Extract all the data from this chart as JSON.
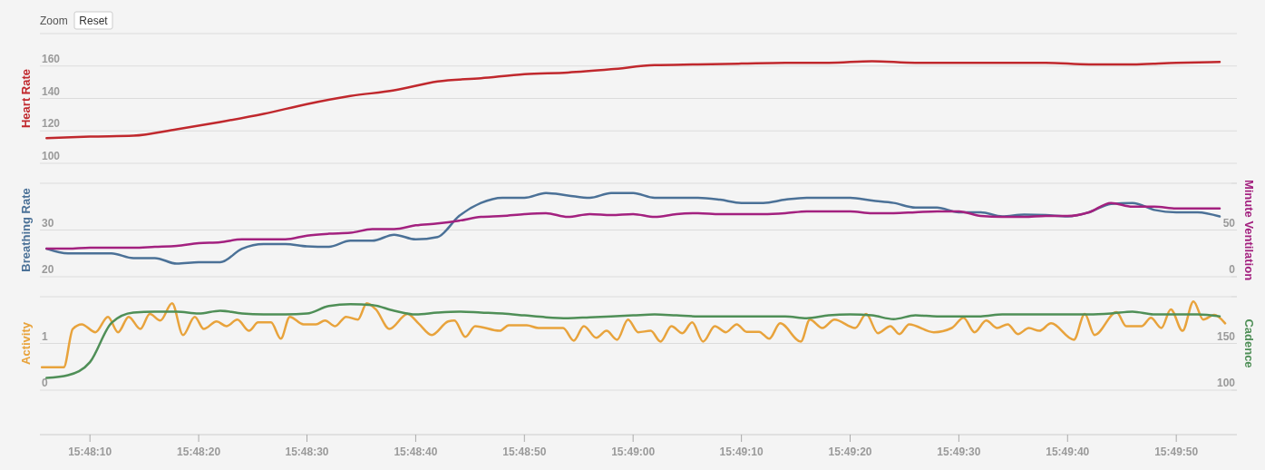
{
  "chart_data": [
    {
      "type": "line",
      "ylabel": "Heart Rate",
      "annotations": [
        "Zoom",
        "Reset"
      ],
      "xlim": [
        15.8015,
        15.83211
      ],
      "ylim": [
        100,
        180
      ],
      "yticks": [
        100,
        120,
        140,
        160,
        {
          "value": 180,
          "label": null
        }
      ],
      "grid": "y",
      "tick_labels": "y",
      "marker": "none",
      "series": [
        {
          "color": "#c0282d",
          "x": [
            15.80167,
            15.80278,
            15.80389,
            15.805,
            15.80611,
            15.80722,
            15.80833,
            15.80944,
            15.81056,
            15.81167,
            15.81278,
            15.81389,
            15.815,
            15.81611,
            15.81722,
            15.81833,
            15.81944,
            15.82056,
            15.82167,
            15.82278,
            15.82389,
            15.825,
            15.82611,
            15.82722,
            15.82833,
            15.82944,
            15.83056,
            15.83167
          ],
          "values": [
            115.5,
            116.5,
            117,
            121,
            125.5,
            130.5,
            136.5,
            141.5,
            145,
            150.5,
            152.5,
            155,
            156,
            158,
            160.5,
            161,
            161.5,
            162,
            162,
            163,
            162,
            162,
            162,
            162,
            161,
            161,
            162,
            162.5
          ]
        }
      ]
    },
    {
      "type": "line",
      "ylabel": "Breathing Rate",
      "y2label": "Minute Ventilation",
      "xlim": [
        15.8015,
        15.83211
      ],
      "ylim": [
        20,
        40
      ],
      "yticks": [
        20,
        30,
        {
          "value": 40,
          "label": null
        }
      ],
      "y2lim": [
        0,
        100
      ],
      "y2ticks": [
        0,
        50,
        {
          "value": 100,
          "label": null
        }
      ],
      "grid": "y",
      "tick_labels": "y",
      "marker": "none",
      "series": [
        {
          "color": "#4b7197",
          "x": [
            15.80167,
            15.80222,
            15.80278,
            15.80333,
            15.80389,
            15.80444,
            15.805,
            15.80556,
            15.80611,
            15.80667,
            15.80722,
            15.80778,
            15.80833,
            15.80889,
            15.80944,
            15.81,
            15.81056,
            15.81111,
            15.81167,
            15.81222,
            15.81278,
            15.81333,
            15.81389,
            15.81444,
            15.815,
            15.81556,
            15.81611,
            15.81667,
            15.81722,
            15.81778,
            15.81833,
            15.81889,
            15.81944,
            15.82,
            15.82056,
            15.82111,
            15.82167,
            15.82222,
            15.82278,
            15.82333,
            15.82389,
            15.82444,
            15.825,
            15.82556,
            15.82611,
            15.82667,
            15.82722,
            15.82778,
            15.82833,
            15.82889,
            15.82944,
            15.83,
            15.83056,
            15.83111,
            15.83167
          ],
          "values": [
            26,
            25,
            25,
            25,
            24,
            24,
            22.8,
            23.1,
            23.1,
            26,
            27,
            27,
            26.5,
            26.4,
            27.7,
            27.7,
            29,
            28,
            28.5,
            33,
            35.8,
            36.9,
            36.9,
            37.9,
            37.4,
            36.9,
            37.9,
            37.9,
            36.9,
            36.9,
            36.9,
            36.5,
            35.8,
            35.8,
            36.5,
            36.9,
            36.9,
            36.9,
            36.3,
            35.8,
            34.8,
            34.8,
            33.8,
            33.8,
            32.9,
            33.3,
            33.2,
            32.9,
            33.8,
            35.6,
            35.8,
            34.3,
            33.8,
            33.8,
            32.9
          ]
        },
        {
          "color": "#a3217f",
          "axis": "y2",
          "x": [
            15.80167,
            15.80222,
            15.80278,
            15.80333,
            15.80389,
            15.80444,
            15.805,
            15.80556,
            15.80611,
            15.80667,
            15.80722,
            15.80778,
            15.80833,
            15.80889,
            15.80944,
            15.81,
            15.81056,
            15.81111,
            15.81167,
            15.81222,
            15.81278,
            15.81333,
            15.81389,
            15.81444,
            15.815,
            15.81556,
            15.81611,
            15.81667,
            15.81722,
            15.81778,
            15.81833,
            15.81889,
            15.81944,
            15.82,
            15.82056,
            15.82111,
            15.82167,
            15.82222,
            15.82278,
            15.82333,
            15.82389,
            15.82444,
            15.825,
            15.82556,
            15.82611,
            15.82667,
            15.82722,
            15.82778,
            15.82833,
            15.82889,
            15.82944,
            15.83,
            15.83056,
            15.83111,
            15.83167
          ],
          "values": [
            30,
            30,
            31,
            31,
            31,
            32,
            33,
            36,
            37,
            40,
            40,
            40,
            44,
            46,
            47,
            51,
            51,
            55,
            57,
            60,
            64,
            65,
            67,
            68,
            64,
            67,
            66,
            67,
            64,
            67,
            68,
            67,
            67,
            67,
            68,
            70,
            70,
            70,
            68,
            68,
            69,
            70,
            70,
            65,
            64,
            64,
            65,
            65,
            69,
            79,
            75,
            75,
            73,
            73,
            73
          ]
        }
      ]
    },
    {
      "type": "line",
      "ylabel": "Activity",
      "y2label": "Cadence",
      "xlim": [
        15.8015,
        15.83211
      ],
      "xticks": [
        {
          "value": 15.80278,
          "label": "15:48:10"
        },
        {
          "value": 15.80556,
          "label": "15:48:20"
        },
        {
          "value": 15.80833,
          "label": "15:48:30"
        },
        {
          "value": 15.81111,
          "label": "15:48:40"
        },
        {
          "value": 15.81389,
          "label": "15:48:50"
        },
        {
          "value": 15.81667,
          "label": "15:49:00"
        },
        {
          "value": 15.81944,
          "label": "15:49:10"
        },
        {
          "value": 15.82222,
          "label": "15:49:20"
        },
        {
          "value": 15.825,
          "label": "15:49:30"
        },
        {
          "value": 15.82778,
          "label": "15:49:40"
        },
        {
          "value": 15.83056,
          "label": "15:49:50"
        }
      ],
      "ylim": [
        0,
        2
      ],
      "yticks": [
        0,
        1,
        {
          "value": 2,
          "label": null
        }
      ],
      "y2lim": [
        100,
        200
      ],
      "y2ticks": [
        100,
        150,
        {
          "value": 200,
          "label": null
        }
      ],
      "grid": "y",
      "marker": "none",
      "series": [
        {
          "color": "#e8a33c",
          "x": [
            15.80155,
            15.80211,
            15.80234,
            15.80257,
            15.80292,
            15.80324,
            15.8035,
            15.80377,
            15.80407,
            15.80431,
            15.80458,
            15.80488,
            15.80516,
            15.80546,
            15.80569,
            15.80602,
            15.80627,
            15.80655,
            15.80685,
            15.80708,
            15.80741,
            15.80766,
            15.80789,
            15.80824,
            15.80856,
            15.80879,
            15.80905,
            15.80933,
            15.80963,
            15.80986,
            15.81009,
            15.81044,
            15.8109,
            15.81118,
            15.81152,
            15.81194,
            15.8121,
            15.81238,
            15.81263,
            15.81326,
            15.81349,
            15.81395,
            15.81425,
            15.81488,
            15.81515,
            15.81541,
            15.81573,
            15.81599,
            15.81626,
            15.81654,
            15.8168,
            15.81712,
            15.81737,
            15.81765,
            15.81793,
            15.81818,
            15.81846,
            15.81876,
            15.81904,
            15.81932,
            15.81957,
            15.81989,
            15.82015,
            15.82043,
            15.82096,
            15.82119,
            15.82151,
            15.82182,
            15.82235,
            15.82263,
            15.82293,
            15.82325,
            15.82348,
            15.82373,
            15.82436,
            15.82482,
            15.82512,
            15.8254,
            15.8257,
            15.82598,
            15.82625,
            15.82651,
            15.82679,
            15.82706,
            15.82736,
            15.82794,
            15.82822,
            15.82847,
            15.82903,
            15.82928,
            15.82968,
            15.82991,
            15.83018,
            15.83042,
            15.83072,
            15.831,
            15.83125,
            15.83153,
            15.83181
          ],
          "values": [
            0.49,
            0.49,
            1.31,
            1.41,
            1.24,
            1.57,
            1.24,
            1.57,
            1.31,
            1.63,
            1.49,
            1.86,
            1.18,
            1.57,
            1.31,
            1.47,
            1.37,
            1.51,
            1.27,
            1.45,
            1.45,
            1.1,
            1.57,
            1.41,
            1.41,
            1.49,
            1.37,
            1.57,
            1.51,
            1.86,
            1.73,
            1.31,
            1.63,
            1.43,
            1.18,
            1.47,
            1.49,
            1.14,
            1.37,
            1.27,
            1.39,
            1.39,
            1.33,
            1.33,
            1.06,
            1.37,
            1.12,
            1.27,
            1.08,
            1.51,
            1.24,
            1.27,
            1.04,
            1.37,
            1.22,
            1.45,
            1.04,
            1.37,
            1.24,
            1.41,
            1.25,
            1.25,
            1.1,
            1.43,
            1.04,
            1.51,
            1.33,
            1.51,
            1.33,
            1.63,
            1.22,
            1.37,
            1.2,
            1.41,
            1.24,
            1.33,
            1.55,
            1.24,
            1.49,
            1.33,
            1.41,
            1.2,
            1.33,
            1.27,
            1.43,
            1.08,
            1.63,
            1.18,
            1.67,
            1.37,
            1.37,
            1.55,
            1.33,
            1.73,
            1.27,
            1.9,
            1.51,
            1.61,
            1.43
          ]
        },
        {
          "color": "#4f8f57",
          "axis": "y2",
          "x": [
            15.80167,
            15.80222,
            15.80278,
            15.80333,
            15.80389,
            15.80444,
            15.805,
            15.80556,
            15.80611,
            15.80667,
            15.80722,
            15.80778,
            15.80833,
            15.80889,
            15.80944,
            15.81,
            15.81056,
            15.81111,
            15.81167,
            15.81222,
            15.81278,
            15.81333,
            15.81389,
            15.81444,
            15.815,
            15.81556,
            15.81611,
            15.81667,
            15.81722,
            15.81778,
            15.81833,
            15.81889,
            15.81944,
            15.82,
            15.82056,
            15.82111,
            15.82167,
            15.82222,
            15.82278,
            15.82333,
            15.82389,
            15.82444,
            15.825,
            15.82556,
            15.82611,
            15.82667,
            15.82722,
            15.82778,
            15.82833,
            15.82889,
            15.82944,
            15.83,
            15.83056,
            15.83111,
            15.83167
          ],
          "values": [
            113,
            116,
            130,
            172,
            183,
            184,
            184,
            182,
            185,
            182,
            181,
            181,
            182,
            190,
            192,
            191,
            185,
            181,
            183,
            184,
            183,
            182,
            180,
            178,
            177,
            178,
            179,
            180,
            181,
            180,
            179,
            179,
            179,
            179,
            179,
            177,
            180,
            181,
            180,
            176,
            180,
            179,
            179,
            179,
            181,
            181,
            181,
            181,
            181,
            182,
            184,
            181,
            181,
            181,
            179
          ]
        }
      ]
    }
  ]
}
